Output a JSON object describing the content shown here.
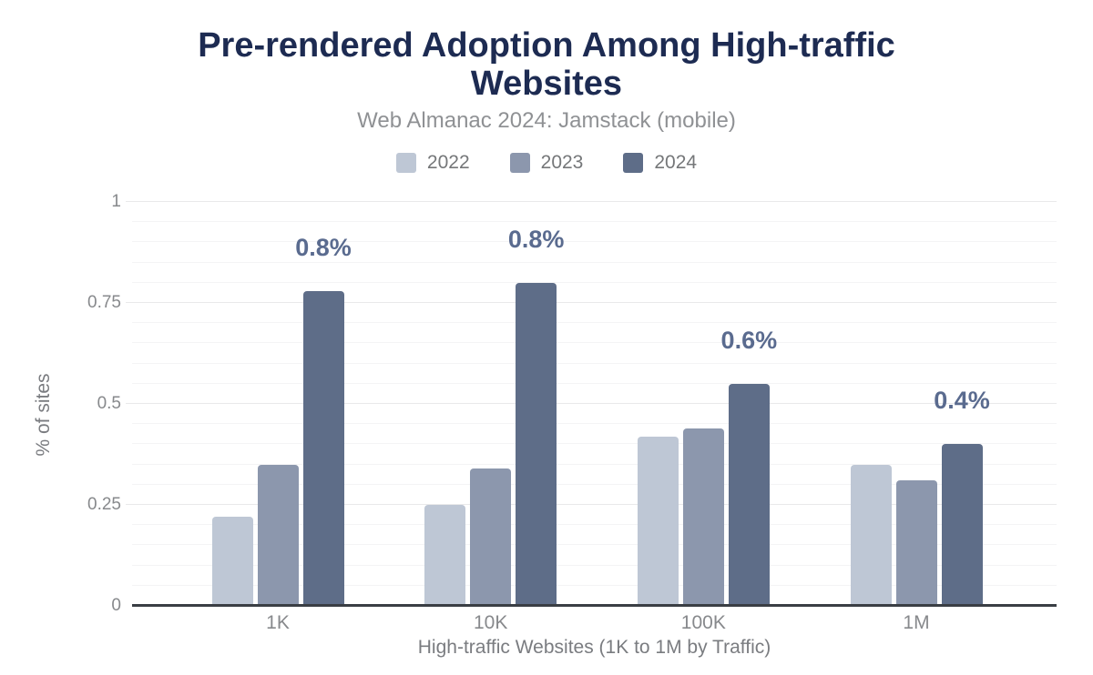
{
  "chart_data": {
    "type": "bar",
    "title": "Pre-rendered Adoption Among High-traffic Websites",
    "subtitle": "Web Almanac 2024: Jamstack (mobile)",
    "xlabel": "High-traffic Websites (1K to 1M by Traffic)",
    "ylabel": "% of sites",
    "categories": [
      "1K",
      "10K",
      "100K",
      "1M"
    ],
    "series": [
      {
        "name": "2022",
        "color": "#bec7d5",
        "values": [
          0.22,
          0.25,
          0.42,
          0.35
        ]
      },
      {
        "name": "2023",
        "color": "#8c97ad",
        "values": [
          0.35,
          0.34,
          0.44,
          0.31
        ]
      },
      {
        "name": "2024",
        "color": "#5e6d88",
        "values": [
          0.78,
          0.8,
          0.55,
          0.4
        ]
      }
    ],
    "annotations": [
      {
        "category": "1K",
        "series": "2024",
        "text": "0.8%"
      },
      {
        "category": "10K",
        "series": "2024",
        "text": "0.8%"
      },
      {
        "category": "100K",
        "series": "2024",
        "text": "0.6%"
      },
      {
        "category": "1M",
        "series": "2024",
        "text": "0.4%"
      }
    ],
    "ylim": [
      0,
      1
    ],
    "yticks": [
      {
        "label": "0",
        "value": 0
      },
      {
        "label": "0.25",
        "value": 0.25
      },
      {
        "label": "0.5",
        "value": 0.5
      },
      {
        "label": "0.75",
        "value": 0.75
      },
      {
        "label": "1",
        "value": 1
      }
    ],
    "grid": {
      "orientation": "horizontal",
      "minor_step": 0.05,
      "major_step": 0.25
    },
    "legend_position": "top",
    "colors": {
      "title": "#1d2b52",
      "subtitle": "#8f9194",
      "legend_text": "#757779",
      "tick_text": "#87898c",
      "axis_title_text": "#7a7c80",
      "annotation_text": "#5a6b8f",
      "axis_line": "#3a3e44",
      "grid_minor": "#f4f4f5",
      "grid_major": "#e9e9ea"
    }
  }
}
